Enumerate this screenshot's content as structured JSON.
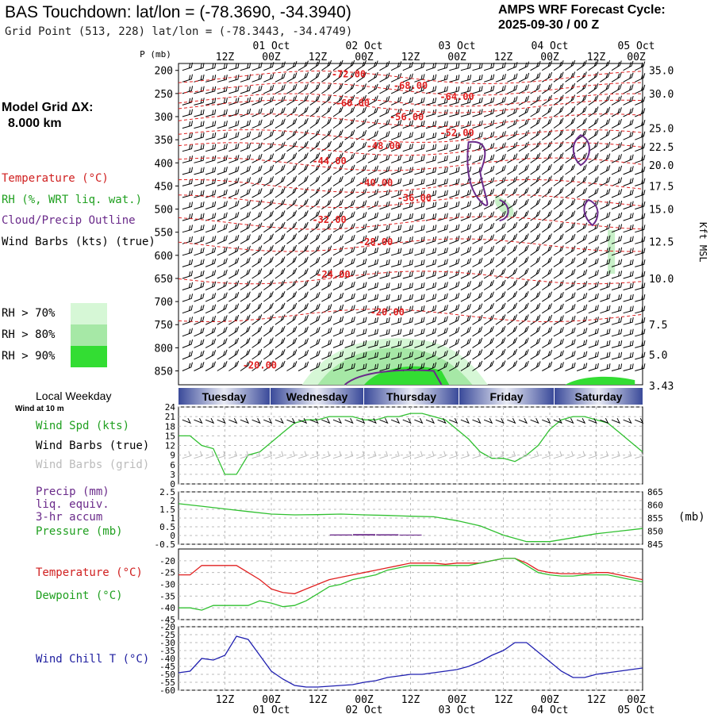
{
  "header": {
    "title": "BAS Touchdown:  lat/lon = (-78.3690, -34.3940)",
    "subtitle": "Grid Point (513, 228) lat/lon = (-78.3443, -34.4749)",
    "cycle_line1": "AMPS WRF Forecast Cycle:",
    "cycle_line2": "2025-09-30 / 00  Z"
  },
  "model": {
    "grid_label": "Model Grid ΔX:",
    "grid_value": "8.000 km"
  },
  "legend": {
    "temperature": "Temperature (°C)",
    "rh": "RH (%, WRT liq. wat.)",
    "cloud": "Cloud/Precip Outline",
    "wind": "Wind Barbs (kts) (true)",
    "rh70": "RH > 70%",
    "rh80": "RH > 80%",
    "rh90": "RH > 90%",
    "colors": {
      "rh70": "#d6f7d6",
      "rh80": "#a6e8a6",
      "rh90": "#33dd33",
      "temperature": "#e02020",
      "cloud": "#6a2a8a"
    }
  },
  "time_axis": {
    "top_dates": [
      "01 Oct",
      "02 Oct",
      "03 Oct",
      "04 Oct",
      "05 Oct"
    ],
    "hour_labels": [
      "12Z",
      "00Z",
      "12Z",
      "00Z",
      "12Z",
      "00Z",
      "12Z",
      "00Z",
      "12Z",
      "00Z"
    ],
    "p_label": "P (mb)"
  },
  "weekday": {
    "title": "Local Weekday",
    "wind_note": "Wind at 10 m",
    "days": [
      "Tuesday",
      "Wednesday",
      "Thursday",
      "Friday",
      "Saturday"
    ]
  },
  "panels": {
    "wind_spd": "Wind Spd (kts)",
    "wind_barbs_true": "Wind Barbs (true)",
    "wind_barbs_grid": "Wind Barbs (grid)",
    "precip1": "Precip (mm)",
    "precip2": "liq. equiv.",
    "precip3": "3-hr accum",
    "pressure": "Pressure (mb)",
    "pressure_unit": "(mb)",
    "temperature": "Temperature (°C)",
    "dewpoint": "Dewpoint (°C)",
    "windchill": "Wind Chill T (°C)"
  },
  "chart_data": [
    {
      "type": "contour",
      "name": "time-height cross section",
      "x_hours": [
        0,
        120
      ],
      "pressure_levels": [
        200,
        250,
        300,
        350,
        400,
        450,
        500,
        550,
        600,
        650,
        700,
        750,
        800,
        850
      ],
      "height_labels": [
        "35.0",
        "30.0",
        "25.0",
        "22.5",
        "20.0",
        "17.5",
        "15.0",
        "12.5",
        "10.0",
        "7.5",
        "5.0",
        "3.43"
      ],
      "height_label_pressures": [
        200,
        250,
        325,
        365,
        405,
        450,
        500,
        570,
        650,
        750,
        815,
        882
      ],
      "height_axis_label": "Kft MSL",
      "isotherm_labels": [
        {
          "t": 44,
          "p": 215,
          "text": "-72.00"
        },
        {
          "t": 60,
          "p": 240,
          "text": "-68.00"
        },
        {
          "t": 72,
          "p": 264,
          "text": "-64.00"
        },
        {
          "t": 45,
          "p": 278,
          "text": "-60.00"
        },
        {
          "t": 59,
          "p": 308,
          "text": "-56.00"
        },
        {
          "t": 72,
          "p": 342,
          "text": "-52.00"
        },
        {
          "t": 53,
          "p": 370,
          "text": "-48.00"
        },
        {
          "t": 39,
          "p": 403,
          "text": "-44.00"
        },
        {
          "t": 51,
          "p": 450,
          "text": "-40.00"
        },
        {
          "t": 61,
          "p": 483,
          "text": "-36.00"
        },
        {
          "t": 39,
          "p": 530,
          "text": "-32.00"
        },
        {
          "t": 51,
          "p": 578,
          "text": "-28.00"
        },
        {
          "t": 40,
          "p": 648,
          "text": "-24.00"
        },
        {
          "t": 54,
          "p": 730,
          "text": "-20.00"
        },
        {
          "t": 21,
          "p": 845,
          "text": "-20.00"
        }
      ]
    },
    {
      "type": "line",
      "name": "wind speed 10 m",
      "ylabel": "kts",
      "yticks": [
        0,
        3,
        6,
        9,
        12,
        15,
        18,
        21,
        24
      ],
      "ylim": [
        0,
        24
      ],
      "x": [
        0,
        3,
        6,
        9,
        12,
        15,
        18,
        21,
        24,
        27,
        30,
        33,
        36,
        39,
        42,
        45,
        48,
        51,
        54,
        57,
        60,
        63,
        66,
        69,
        72,
        75,
        78,
        81,
        84,
        87,
        90,
        93,
        96,
        99,
        102,
        105,
        108,
        111,
        114,
        117,
        120
      ],
      "series": [
        {
          "name": "Wind Spd",
          "values": [
            15,
            15,
            12,
            11,
            3,
            3,
            9,
            10,
            13,
            16,
            19,
            20,
            20,
            21,
            21,
            21,
            20,
            20,
            21,
            21,
            22,
            22,
            21,
            20,
            17,
            14,
            10,
            8,
            8,
            7,
            9,
            12,
            17,
            20,
            21,
            21,
            20,
            19,
            16,
            13,
            10
          ]
        }
      ]
    },
    {
      "type": "line",
      "name": "pressure and precip",
      "yticks_left": [
        -0.5,
        0,
        0.5,
        1.0,
        1.5,
        2.0,
        2.5
      ],
      "yticks_right": [
        845,
        850,
        855,
        860,
        865
      ],
      "x": [
        0,
        6,
        12,
        18,
        24,
        30,
        36,
        42,
        48,
        54,
        60,
        66,
        72,
        78,
        84,
        90,
        96,
        102,
        108,
        114,
        120
      ],
      "series": [
        {
          "name": "Pressure",
          "values": [
            860.5,
            859.5,
            858.5,
            857.5,
            856.5,
            856.2,
            856.3,
            856.5,
            856.2,
            856.0,
            855.7,
            855.5,
            854.0,
            852.0,
            848.5,
            846.0,
            846.0,
            847.5,
            849.0,
            850.0,
            851.0
          ]
        },
        {
          "name": "Precip",
          "values": [
            0,
            0,
            0,
            0,
            0,
            0,
            0,
            0.06,
            0.08,
            0.07,
            0.05,
            0,
            0,
            0,
            0,
            0,
            0,
            0,
            0,
            0,
            0
          ]
        }
      ]
    },
    {
      "type": "line",
      "name": "temperature dewpoint",
      "yticks": [
        -45,
        -40,
        -35,
        -30,
        -25,
        -20
      ],
      "ylim": [
        -45,
        -15
      ],
      "x": [
        0,
        3,
        6,
        9,
        12,
        15,
        18,
        21,
        24,
        27,
        30,
        33,
        36,
        39,
        42,
        45,
        48,
        51,
        54,
        57,
        60,
        63,
        66,
        69,
        72,
        75,
        78,
        81,
        84,
        87,
        90,
        93,
        96,
        99,
        102,
        105,
        108,
        111,
        114,
        117,
        120
      ],
      "series": [
        {
          "name": "Temperature",
          "values": [
            -26,
            -26,
            -22,
            -22,
            -22,
            -22,
            -25,
            -28,
            -32,
            -33.5,
            -34,
            -32,
            -30,
            -28,
            -27,
            -26,
            -25,
            -24,
            -23,
            -22,
            -21,
            -21,
            -21,
            -21.5,
            -21,
            -21,
            -21,
            -20,
            -19,
            -19,
            -21,
            -24,
            -25,
            -25.5,
            -25.5,
            -25.5,
            -25,
            -25,
            -26,
            -27,
            -28
          ]
        },
        {
          "name": "Dewpoint",
          "values": [
            -40,
            -40,
            -41,
            -39,
            -39,
            -39,
            -39,
            -37,
            -38,
            -39.5,
            -39,
            -37,
            -34,
            -31,
            -30,
            -28,
            -27,
            -26,
            -24,
            -23,
            -22,
            -22,
            -22,
            -22,
            -22,
            -22,
            -21,
            -20,
            -19,
            -19,
            -22,
            -25,
            -26,
            -26.5,
            -26.5,
            -26,
            -26,
            -26,
            -27,
            -28,
            -29
          ]
        }
      ]
    },
    {
      "type": "line",
      "name": "wind chill",
      "yticks": [
        -60,
        -55,
        -50,
        -45,
        -40,
        -35,
        -30,
        -25,
        -20
      ],
      "ylim": [
        -60,
        -20
      ],
      "x": [
        0,
        3,
        6,
        9,
        12,
        15,
        18,
        21,
        24,
        27,
        30,
        33,
        36,
        39,
        42,
        45,
        48,
        51,
        54,
        57,
        60,
        63,
        66,
        69,
        72,
        75,
        78,
        81,
        84,
        87,
        90,
        93,
        96,
        99,
        102,
        105,
        108,
        111,
        114,
        117,
        120
      ],
      "series": [
        {
          "name": "Wind Chill",
          "values": [
            -49,
            -48,
            -40,
            -41,
            -38,
            -26,
            -28,
            -38,
            -48,
            -53,
            -57,
            -58,
            -58,
            -57.5,
            -57,
            -56.5,
            -55,
            -54,
            -52,
            -51,
            -50,
            -50,
            -49,
            -48,
            -47,
            -45,
            -42,
            -38,
            -35,
            -30,
            -30,
            -36,
            -42,
            -48,
            -52,
            -52,
            -50,
            -49,
            -48,
            -47,
            -46
          ]
        }
      ]
    }
  ]
}
